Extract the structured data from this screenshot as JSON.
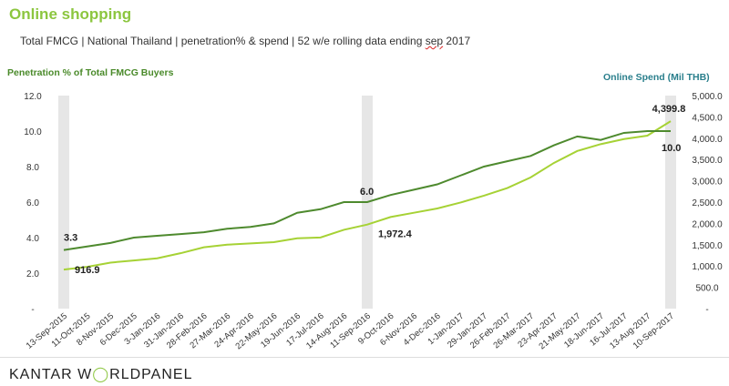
{
  "header": {
    "title": "Online shopping",
    "subtitle_pre": "Total FMCG | National Thailand  | penetration%  & spend  | 52 w/e rolling data ending ",
    "subtitle_sep": "sep",
    "subtitle_post": " 2017"
  },
  "footer": {
    "brand_a": "KANTAR W",
    "brand_b": "RLDPANEL"
  },
  "colors": {
    "penetration": "#4e8a2e",
    "spend": "#a6d235",
    "band": "#e6e6e6"
  },
  "chart_data": {
    "type": "line",
    "xlabel": "",
    "ylabel": "Penetration % of Total FMCG Buyers",
    "y2label": "Online Spend (Mil THB)",
    "categories": [
      "13-Sep-2015",
      "11-Oct-2015",
      "8-Nov-2015",
      "6-Dec-2015",
      "3-Jan-2016",
      "31-Jan-2016",
      "28-Feb-2016",
      "27-Mar-2016",
      "24-Apr-2016",
      "22-May-2016",
      "19-Jun-2016",
      "17-Jul-2016",
      "14-Aug-2016",
      "11-Sep-2016",
      "9-Oct-2016",
      "6-Nov-2016",
      "4-Dec-2016",
      "1-Jan-2017",
      "29-Jan-2017",
      "26-Feb-2017",
      "26-Mar-2017",
      "23-Apr-2017",
      "21-May-2017",
      "18-Jun-2017",
      "16-Jul-2017",
      "13-Aug-2017",
      "10-Sep-2017"
    ],
    "ylim": [
      0,
      12
    ],
    "yticks": [
      "-",
      "2.0",
      "4.0",
      "6.0",
      "8.0",
      "10.0",
      "12.0"
    ],
    "y2lim": [
      0,
      5000
    ],
    "y2ticks": [
      "-",
      "500.0",
      "1,000.0",
      "1,500.0",
      "2,000.0",
      "2,500.0",
      "3,000.0",
      "3,500.0",
      "4,000.0",
      "4,500.0",
      "5,000.0"
    ],
    "highlight_categories": [
      "13-Sep-2015",
      "11-Sep-2016",
      "10-Sep-2017"
    ],
    "series": [
      {
        "axis": "left",
        "values": [
          3.3,
          3.5,
          3.7,
          4.0,
          4.1,
          4.2,
          4.3,
          4.5,
          4.6,
          4.8,
          5.4,
          5.6,
          6.0,
          6.0,
          6.4,
          6.7,
          7.0,
          7.5,
          8.0,
          8.3,
          8.6,
          9.2,
          9.7,
          9.5,
          9.9,
          10.0,
          10.0
        ],
        "labels": {
          "0": "3.3",
          "13": "6.0",
          "26": "10.0"
        }
      },
      {
        "axis": "right",
        "values": [
          916.9,
          980,
          1080,
          1130,
          1180,
          1300,
          1440,
          1500,
          1530,
          1560,
          1650,
          1670,
          1850,
          1972.4,
          2150,
          2250,
          2350,
          2490,
          2650,
          2830,
          3080,
          3420,
          3700,
          3860,
          3980,
          4060,
          4399.8
        ],
        "labels": {
          "0": "916.9",
          "13": "1,972.4",
          "26": "4,399.8"
        }
      }
    ]
  }
}
